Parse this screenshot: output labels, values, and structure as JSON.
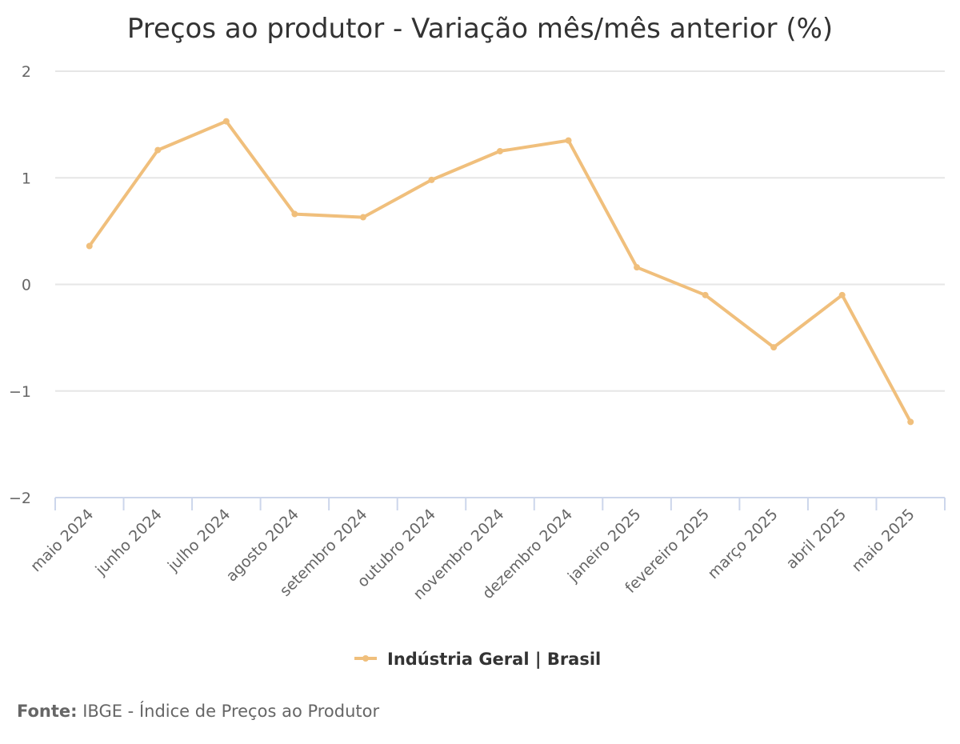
{
  "chart_data": {
    "type": "line",
    "title": "Preços ao produtor - Variação mês/mês anterior (%)",
    "xlabel": "",
    "ylabel": "",
    "ylim": [
      -2,
      2
    ],
    "yticks": [
      "2",
      "1",
      "0",
      "−1",
      "−2"
    ],
    "ytick_values": [
      2,
      1,
      0,
      -1,
      -2
    ],
    "grid": true,
    "legend_position": "bottom-center",
    "categories": [
      "maio 2024",
      "junho 2024",
      "julho 2024",
      "agosto 2024",
      "setembro 2024",
      "outubro 2024",
      "novembro 2024",
      "dezembro 2024",
      "janeiro 2025",
      "fevereiro 2025",
      "março 2025",
      "abril 2025",
      "maio 2025"
    ],
    "series": [
      {
        "name": "Indústria Geral | Brasil",
        "color": "#f0bf7c",
        "values": [
          0.36,
          1.26,
          1.53,
          0.66,
          0.63,
          0.98,
          1.25,
          1.35,
          0.16,
          -0.1,
          -0.59,
          -0.1,
          -1.29
        ]
      }
    ]
  },
  "source": {
    "label": "Fonte:",
    "text": " IBGE - Índice de Preços ao Produtor"
  }
}
